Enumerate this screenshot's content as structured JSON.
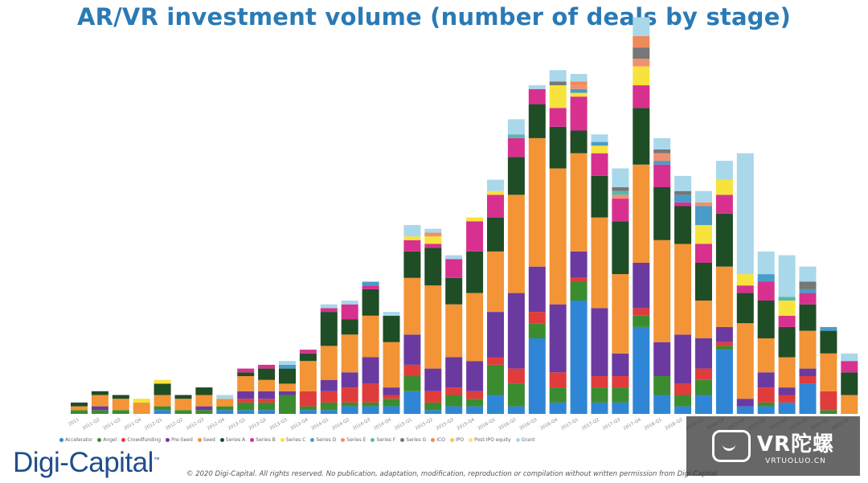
{
  "chart_data": {
    "type": "bar",
    "stacked": true,
    "title": "AR/VR investment volume (number of deals by stage)",
    "xlabel": "",
    "ylabel": "",
    "ylim": [
      0,
      100
    ],
    "categories": [
      "2011",
      "2011-Q2",
      "2011-Q3",
      "2011-Q4",
      "2012-Q1",
      "2012-Q2",
      "2012-Q3",
      "2012-Q4",
      "2013-Q1",
      "2013-Q2",
      "2013-Q3",
      "2013-Q4",
      "2014-Q1",
      "2014-Q2",
      "2014-Q3",
      "2014-Q4",
      "2015-Q1",
      "2015-Q2",
      "2015-Q3",
      "2015-Q4",
      "2016-Q1",
      "2016-Q2",
      "2016-Q3",
      "2016-Q4",
      "2017-Q1",
      "2017-Q2",
      "2017-Q3",
      "2017-Q4",
      "2018-Q1",
      "2018-Q2",
      "2018-Q3",
      "2018-Q4",
      "2019-Q1",
      "2019-Q2",
      "2019-Q3",
      "2019-Q4",
      "2020-Q1",
      "2020-Q2"
    ],
    "series": [
      {
        "name": "Accelerator",
        "color": "#2f86d6",
        "values": [
          0,
          0,
          0,
          0,
          1,
          0,
          0,
          1,
          1,
          1,
          0,
          1,
          1,
          2,
          2,
          2,
          6,
          1,
          2,
          2,
          5,
          2,
          20,
          3,
          30,
          3,
          3,
          23,
          5,
          2,
          5,
          17,
          2,
          2,
          3,
          8,
          0,
          0
        ]
      },
      {
        "name": "Angel",
        "color": "#3b8c2e",
        "values": [
          1,
          1,
          1,
          0,
          1,
          1,
          1,
          1,
          2,
          2,
          5,
          1,
          2,
          1,
          1,
          2,
          4,
          2,
          3,
          2,
          8,
          6,
          4,
          4,
          5,
          4,
          4,
          3,
          5,
          3,
          4,
          1,
          0,
          1,
          0,
          0,
          1,
          0
        ]
      },
      {
        "name": "Crowdfunding",
        "color": "#e03c3c",
        "values": [
          0,
          0,
          0,
          0,
          0,
          0,
          0,
          0,
          1,
          1,
          0,
          4,
          3,
          4,
          5,
          1,
          3,
          3,
          2,
          2,
          2,
          4,
          3,
          4,
          1,
          3,
          3,
          2,
          0,
          3,
          3,
          1,
          0,
          4,
          2,
          2,
          5,
          0
        ]
      },
      {
        "name": "Pre-Seed",
        "color": "#6b3aa0",
        "values": [
          0,
          1,
          0,
          0,
          0,
          0,
          1,
          0,
          2,
          2,
          1,
          0,
          3,
          4,
          7,
          2,
          8,
          6,
          8,
          8,
          12,
          20,
          12,
          18,
          7,
          18,
          6,
          12,
          9,
          13,
          8,
          4,
          2,
          4,
          2,
          2,
          0,
          0
        ]
      },
      {
        "name": "Seed",
        "color": "#f39436",
        "values": [
          1,
          3,
          3,
          3,
          3,
          3,
          3,
          2,
          4,
          3,
          2,
          8,
          9,
          10,
          11,
          12,
          15,
          22,
          14,
          18,
          16,
          26,
          34,
          36,
          26,
          24,
          21,
          26,
          27,
          24,
          10,
          16,
          20,
          9,
          8,
          10,
          10,
          5
        ]
      },
      {
        "name": "Series A",
        "color": "#1f4d25",
        "values": [
          1,
          1,
          1,
          0,
          3,
          1,
          2,
          0,
          1,
          3,
          4,
          2,
          9,
          4,
          7,
          7,
          7,
          10,
          7,
          11,
          9,
          10,
          9,
          11,
          6,
          11,
          14,
          15,
          14,
          10,
          10,
          14,
          8,
          10,
          8,
          7,
          6,
          6
        ]
      },
      {
        "name": "Series B",
        "color": "#d8308f",
        "values": [
          0,
          0,
          0,
          0,
          0,
          0,
          0,
          0,
          1,
          1,
          0,
          1,
          1,
          4,
          1,
          0,
          3,
          1,
          5,
          8,
          6,
          5,
          4,
          5,
          9,
          6,
          6,
          6,
          6,
          1,
          5,
          5,
          2,
          5,
          3,
          3,
          0,
          3
        ]
      },
      {
        "name": "Series C",
        "color": "#f7e33b",
        "values": [
          0,
          0,
          0,
          1,
          1,
          0,
          0,
          0,
          0,
          0,
          0,
          0,
          0,
          0,
          0,
          0,
          1,
          2,
          0,
          1,
          1,
          0,
          0,
          6,
          1,
          2,
          0,
          5,
          0,
          0,
          5,
          4,
          3,
          0,
          4,
          0,
          0,
          0
        ]
      },
      {
        "name": "Series D",
        "color": "#4a9cc9",
        "values": [
          0,
          0,
          0,
          0,
          0,
          0,
          0,
          0,
          0,
          0,
          1,
          0,
          0,
          0,
          1,
          0,
          0,
          0,
          0,
          0,
          0,
          0,
          0,
          0,
          1,
          1,
          0,
          0,
          1,
          2,
          5,
          0,
          0,
          2,
          0,
          1,
          1,
          0
        ]
      },
      {
        "name": "Series E",
        "color": "#f09070",
        "values": [
          0,
          0,
          0,
          0,
          0,
          0,
          0,
          0,
          0,
          0,
          0,
          0,
          0,
          0,
          0,
          0,
          0,
          1,
          0,
          0,
          0,
          0,
          0,
          0,
          1,
          0,
          1,
          2,
          2,
          0,
          1,
          0,
          0,
          0,
          0,
          0,
          0,
          0
        ]
      },
      {
        "name": "Series F",
        "color": "#58b7b0",
        "values": [
          0,
          0,
          0,
          0,
          0,
          0,
          0,
          0,
          0,
          0,
          0,
          0,
          0,
          0,
          0,
          0,
          0,
          0,
          0,
          0,
          0,
          1,
          0,
          0,
          0,
          0,
          1,
          0,
          0,
          0,
          0,
          0,
          0,
          0,
          1,
          0,
          0,
          0
        ]
      },
      {
        "name": "Series G",
        "color": "#777777",
        "values": [
          0,
          0,
          0,
          0,
          0,
          0,
          0,
          0,
          0,
          0,
          0,
          0,
          0,
          0,
          0,
          0,
          0,
          0,
          0,
          0,
          0,
          0,
          0,
          1,
          0,
          0,
          1,
          3,
          1,
          1,
          0,
          0,
          0,
          0,
          0,
          2,
          0,
          0
        ]
      },
      {
        "name": "ICO",
        "color": "#ef8a5a",
        "values": [
          0,
          0,
          0,
          0,
          0,
          0,
          0,
          0,
          0,
          0,
          0,
          0,
          0,
          0,
          0,
          0,
          0,
          0,
          0,
          0,
          0,
          0,
          0,
          0,
          1,
          0,
          0,
          3,
          0,
          0,
          0,
          0,
          0,
          0,
          0,
          0,
          0,
          0
        ]
      },
      {
        "name": "IPO",
        "color": "#f2c94c",
        "values": [
          0,
          0,
          0,
          0,
          0,
          0,
          0,
          0,
          0,
          0,
          0,
          0,
          0,
          0,
          0,
          0,
          0,
          0,
          0,
          0,
          0,
          0,
          0,
          0,
          0,
          0,
          0,
          0,
          0,
          0,
          0,
          0,
          0,
          0,
          0,
          0,
          0,
          0
        ]
      },
      {
        "name": "Post-IPO equity",
        "color": "#f5e66a",
        "values": [
          0,
          0,
          0,
          0,
          0,
          0,
          0,
          0,
          0,
          0,
          0,
          0,
          0,
          0,
          0,
          0,
          0,
          0,
          0,
          0,
          0,
          0,
          0,
          0,
          0,
          0,
          0,
          0,
          0,
          0,
          0,
          0,
          0,
          0,
          0,
          0,
          0,
          0
        ]
      },
      {
        "name": "Grant",
        "color": "#a9d8ea",
        "values": [
          0,
          0,
          0,
          0,
          0,
          0,
          0,
          1,
          0,
          0,
          1,
          0,
          1,
          1,
          0,
          1,
          3,
          1,
          1,
          0,
          3,
          4,
          1,
          3,
          2,
          2,
          5,
          5,
          3,
          4,
          3,
          5,
          32,
          6,
          11,
          4,
          0,
          2
        ]
      }
    ]
  },
  "page": {
    "title": "AR/VR investment volume (number of deals by stage)",
    "brand": "Digi-Capital",
    "brand_mark": "™",
    "copyright": "© 2020 Digi-Capital. All rights reserved. No publication, adaptation, modification, reproduction or compilation without written permission from Digi-Capital",
    "watermark_name": "VR陀螺",
    "watermark_url": "VRTUOLUO.CN"
  }
}
